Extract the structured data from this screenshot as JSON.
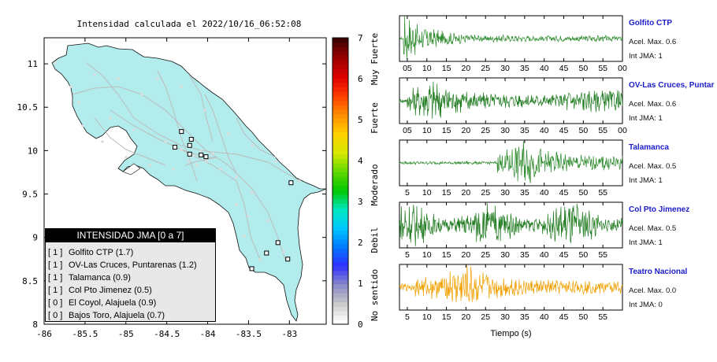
{
  "title": "Intensidad calculada el 2022/10/16_06:52:08",
  "map": {
    "x_ticks": [
      "-86",
      "-85.5",
      "-85",
      "-84.5",
      "-84",
      "-83.5",
      "-83"
    ],
    "y_ticks": [
      "11",
      "10.5",
      "10",
      "9.5",
      "9",
      "8.5",
      "8"
    ],
    "land_color": "#b2ecec",
    "road_color": "#bcbcbc"
  },
  "colorbar": {
    "ticks": [
      "7",
      "6",
      "5",
      "4",
      "3",
      "2",
      "1",
      "0"
    ],
    "labels": [
      "Muy Fuerte",
      "Fuerte",
      "Moderado",
      "Debil",
      "No sentido"
    ]
  },
  "legend": {
    "header": "INTENSIDAD JMA [0 a 7]",
    "rows": [
      {
        "level": "[ 1 ]",
        "label": "Golfito CTP (1.7)"
      },
      {
        "level": "[ 1 ]",
        "label": "OV-Las Cruces, Puntarenas (1.2)"
      },
      {
        "level": "[ 1 ]",
        "label": "Talamanca (0.9)"
      },
      {
        "level": "[ 1 ]",
        "label": "Col Pto Jimenez (0.5)"
      },
      {
        "level": "[ 0 ]",
        "label": "El Coyol, Alajuela (0.9)"
      },
      {
        "level": "[ 0 ]",
        "label": "Bajos Toro, Alajuela (0.7)"
      }
    ]
  },
  "stations": [
    {
      "name": "Golfito CTP",
      "acel": "Acel. Max. 0.6",
      "int": "Int JMA: 1",
      "color": "#2e8b2e"
    },
    {
      "name": "OV-Las Cruces, Puntar",
      "acel": "Acel. Max. 0.6",
      "int": "Int JMA: 1",
      "color": "#1e7a1e"
    },
    {
      "name": "Talamanca",
      "acel": "Acel. Max. 0.5",
      "int": "Int JMA: 1",
      "color": "#2e8b2e"
    },
    {
      "name": "Col Pto Jimenez",
      "acel": "Acel. Max. 0.5",
      "int": "Int JMA: 1",
      "color": "#1e7a1e"
    },
    {
      "name": "Teatro Nacional",
      "acel": "Acel. Max. 0.0",
      "int": "Int JMA: 0",
      "color": "#f0a000"
    }
  ],
  "waveform_ticks": {
    "row1": [
      "05",
      "10",
      "15",
      "20",
      "25",
      "30",
      "35",
      "40",
      "45",
      "50",
      "55",
      "00"
    ],
    "row2": [
      "05",
      "10",
      "15",
      "20",
      "25",
      "30",
      "35",
      "40",
      "45",
      "50",
      "55",
      "00"
    ],
    "row3": [
      "5",
      "10",
      "15",
      "20",
      "25",
      "30",
      "35",
      "40",
      "45",
      "50",
      "55"
    ],
    "row4": [
      "5",
      "10",
      "15",
      "20",
      "25",
      "30",
      "35",
      "40",
      "45",
      "50",
      "55"
    ],
    "row5": [
      "5",
      "10",
      "15",
      "20",
      "25",
      "30",
      "35",
      "40",
      "45",
      "50",
      "55"
    ]
  },
  "xlabel": "Tiempo (s)",
  "chart_data": [
    {
      "type": "scatter",
      "title": "Intensidad calculada el 2022/10/16_06:52:08",
      "xlim": [
        -86,
        -82.55
      ],
      "ylim": [
        8,
        11.3
      ],
      "stations_marked": [
        {
          "x": -84.32,
          "y": 10.22
        },
        {
          "x": -84.2,
          "y": 10.13
        },
        {
          "x": -84.22,
          "y": 10.06
        },
        {
          "x": -84.08,
          "y": 9.95
        },
        {
          "x": -84.22,
          "y": 9.96
        },
        {
          "x": -84.4,
          "y": 10.04
        },
        {
          "x": -84.02,
          "y": 9.93
        },
        {
          "x": -83.14,
          "y": 8.94
        },
        {
          "x": -83.28,
          "y": 8.82
        },
        {
          "x": -83.02,
          "y": 8.75
        },
        {
          "x": -83.46,
          "y": 8.64
        },
        {
          "x": -82.98,
          "y": 9.63
        }
      ]
    },
    {
      "type": "line",
      "xlabel": "Tiempo (s)",
      "series": [
        {
          "name": "Golfito CTP",
          "peak_time_s": 7
        },
        {
          "name": "OV-Las Cruces, Puntar",
          "peak_time_s": 12
        },
        {
          "name": "Talamanca",
          "peak_time_s": 35
        },
        {
          "name": "Col Pto Jimenez",
          "peak_time_s": 20
        },
        {
          "name": "Teatro Nacional",
          "peak_time_s": 20
        }
      ]
    }
  ]
}
